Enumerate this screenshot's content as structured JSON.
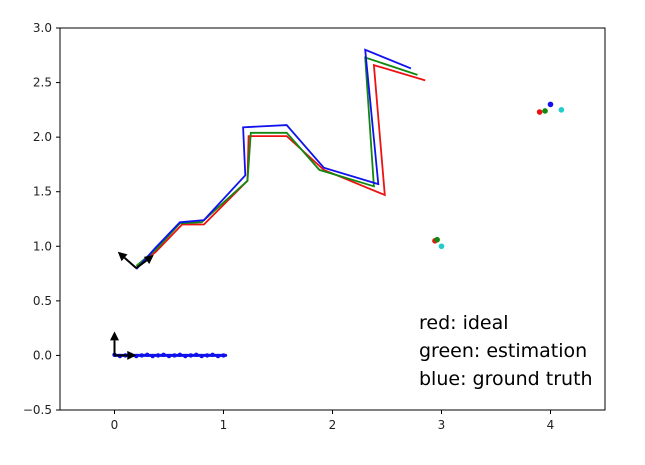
{
  "chart_data": {
    "type": "line",
    "title": "",
    "xlabel": "",
    "ylabel": "",
    "xlim": [
      -0.5,
      4.5
    ],
    "ylim": [
      -0.5,
      3.0
    ],
    "xticks": [
      0,
      1,
      2,
      3,
      4
    ],
    "yticks": [
      -0.5,
      0.0,
      0.5,
      1.0,
      1.5,
      2.0,
      2.5,
      3.0
    ],
    "xtick_labels": [
      "0",
      "1",
      "2",
      "3",
      "4"
    ],
    "ytick_labels": [
      "−0.5",
      "0.0",
      "0.5",
      "1.0",
      "1.5",
      "2.0",
      "2.5",
      "3.0"
    ],
    "grid": false,
    "series": [
      {
        "color": "#ee1111",
        "x": [
          0.2,
          0.38,
          0.62,
          0.82,
          1.22,
          1.23,
          1.58,
          1.92,
          2.48,
          2.38,
          2.85
        ],
        "y": [
          0.8,
          0.95,
          1.2,
          1.2,
          1.6,
          2.01,
          2.01,
          1.7,
          1.47,
          2.66,
          2.52
        ]
      },
      {
        "color": "#118811",
        "x": [
          0.2,
          0.38,
          0.6,
          0.8,
          1.22,
          1.25,
          1.58,
          1.88,
          2.38,
          2.3,
          2.78
        ],
        "y": [
          0.82,
          0.97,
          1.21,
          1.22,
          1.6,
          2.04,
          2.04,
          1.7,
          1.55,
          2.73,
          2.57
        ]
      },
      {
        "color": "#1111ee",
        "x": [
          0.2,
          0.37,
          0.6,
          0.82,
          1.2,
          1.18,
          1.58,
          1.92,
          2.42,
          2.3,
          2.72
        ],
        "y": [
          0.79,
          0.98,
          1.22,
          1.24,
          1.65,
          2.09,
          2.11,
          1.72,
          1.57,
          2.8,
          2.63
        ]
      }
    ],
    "points": [
      {
        "color": "#ee1111",
        "x": 2.94,
        "y": 1.05
      },
      {
        "color": "#118811",
        "x": 2.96,
        "y": 1.06
      },
      {
        "color": "#22cccc",
        "x": 3.0,
        "y": 1.0
      },
      {
        "color": "#ee1111",
        "x": 3.9,
        "y": 2.23
      },
      {
        "color": "#118811",
        "x": 3.95,
        "y": 2.24
      },
      {
        "color": "#1111ee",
        "x": 4.0,
        "y": 2.3
      },
      {
        "color": "#22cccc",
        "x": 4.1,
        "y": 2.25
      }
    ],
    "lower_trajectory": {
      "color": "#1111ee",
      "x_start": 0.0,
      "x_end": 1.02,
      "y": 0.0
    },
    "pose_arrows": [
      {
        "x": 0.0,
        "y": 0.0,
        "dx": 0.0,
        "dy": 0.22,
        "color": "#000000"
      },
      {
        "x": 0.0,
        "y": 0.0,
        "dx": 0.2,
        "dy": 0.0,
        "color": "#000000"
      },
      {
        "x": 0.2,
        "y": 0.8,
        "dx": -0.17,
        "dy": 0.15,
        "color": "#000000"
      },
      {
        "x": 0.2,
        "y": 0.8,
        "dx": 0.16,
        "dy": 0.12,
        "color": "#000000"
      }
    ],
    "legend": {
      "placement": "bottom-right",
      "entries": [
        "red: ideal",
        "green: estimation",
        "blue: ground truth"
      ]
    }
  }
}
